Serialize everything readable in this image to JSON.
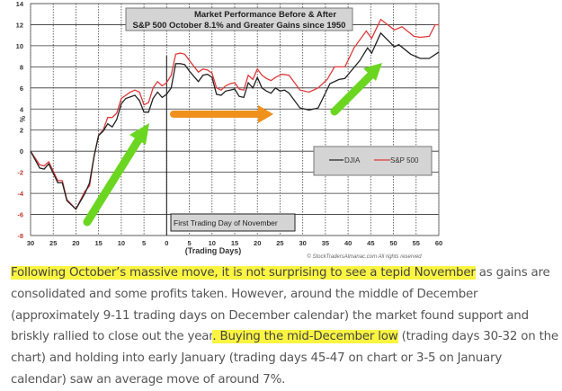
{
  "chart_data": {
    "type": "line",
    "title": [
      "Market Performance Before & After",
      "S&P 500 October 8.1% and Greater Gains since 1950"
    ],
    "xlabel": "(Trading Days)",
    "ylabel": "%",
    "xlim": [
      -30,
      60
    ],
    "ylim": [
      -8,
      14
    ],
    "x_ticks": [
      -30,
      -25,
      -20,
      -15,
      -10,
      -5,
      0,
      5,
      10,
      15,
      20,
      25,
      30,
      35,
      40,
      45,
      50,
      55,
      60
    ],
    "x_tick_labels": [
      "30",
      "25",
      "20",
      "15",
      "10",
      "5",
      "0",
      "5",
      "10",
      "15",
      "20",
      "25",
      "30",
      "35",
      "40",
      "45",
      "50",
      "55",
      "60"
    ],
    "y_ticks": [
      -8,
      -6,
      -4,
      -2,
      0,
      2,
      4,
      6,
      8,
      10,
      12,
      14
    ],
    "y_tick_labels": [
      "-8",
      "-6",
      "-4",
      "-2",
      "0",
      "2",
      "4",
      "6",
      "8",
      "10",
      "12",
      "14"
    ],
    "grid": true,
    "legend_position": "right-middle",
    "annotation": "First Trading Day of November",
    "copyright": "© StockTradersAlmanac.com All rights reserved",
    "series": [
      {
        "name": "DJIA",
        "color": "#222222",
        "x": [
          -30,
          -28,
          -27,
          -26,
          -24,
          -23,
          -22,
          -20,
          -18,
          -17,
          -16,
          -15,
          -14,
          -13,
          -12,
          -11,
          -10,
          -9,
          -7,
          -6,
          -5,
          -4,
          -3,
          -2,
          -1,
          0,
          1,
          2,
          3,
          4,
          5,
          7,
          8,
          9,
          10,
          11,
          12,
          13,
          14,
          15,
          16,
          17,
          18,
          19,
          20,
          21,
          22,
          23,
          24,
          25,
          26,
          27,
          29.4,
          31.4,
          33.4,
          36,
          38,
          39.3,
          42.6,
          44.3,
          45.2,
          47.2,
          50.2,
          51.2,
          53.8,
          55.9,
          57.9,
          60
        ],
        "y": [
          0,
          -1.6,
          -1.7,
          -1.2,
          -3.0,
          -3.0,
          -4.7,
          -5.5,
          -4.0,
          -3.0,
          -0.5,
          1.5,
          1.9,
          2.6,
          2.3,
          3.0,
          4.5,
          5.0,
          5.3,
          4.8,
          3.7,
          3.7,
          5.0,
          5.6,
          5.1,
          5.4,
          6.0,
          8.3,
          8.3,
          8.2,
          7.6,
          6.6,
          7.2,
          7.3,
          7.0,
          5.4,
          5.3,
          5.7,
          5.8,
          5.9,
          5.2,
          5.1,
          6.5,
          6.0,
          7.0,
          6.0,
          5.7,
          5.5,
          6.0,
          5.7,
          5.8,
          5.5,
          4.1,
          3.9,
          4.1,
          6.4,
          6.8,
          6.9,
          8.6,
          9.8,
          9.3,
          11.2,
          9.9,
          10.1,
          9.2,
          8.8,
          8.8,
          9.4
        ]
      },
      {
        "name": "S&P 500",
        "color": "#e0393a",
        "x": [
          -30,
          -28,
          -27,
          -26,
          -24,
          -23,
          -22,
          -20,
          -18,
          -17,
          -16,
          -15,
          -14,
          -13,
          -12,
          -11,
          -10,
          -8,
          -7,
          -6,
          -5,
          -4,
          -3,
          -2,
          -1,
          0,
          1,
          2,
          3,
          4,
          5,
          7,
          8,
          9,
          10,
          11,
          12,
          13,
          14,
          15,
          16,
          17,
          18,
          19,
          20,
          21,
          22,
          23,
          24,
          25.4,
          27,
          29.4,
          31.4,
          33.4,
          35.4,
          37,
          39.3,
          41.3,
          44,
          45.2,
          47.2,
          50.2,
          51.9,
          54.5,
          55.9,
          57.9,
          59.2,
          60
        ],
        "y": [
          0,
          -1.3,
          -1.4,
          -1.0,
          -2.8,
          -2.8,
          -4.6,
          -5.5,
          -3.8,
          -3.3,
          -0.5,
          1.5,
          2.0,
          3.2,
          3.2,
          3.6,
          5.0,
          5.6,
          5.8,
          5.6,
          4.4,
          4.6,
          6.0,
          6.6,
          6.2,
          6.5,
          7.2,
          9.2,
          9.3,
          9.2,
          8.6,
          7.5,
          7.8,
          7.7,
          7.4,
          6.0,
          5.8,
          6.2,
          6.4,
          6.5,
          5.9,
          5.8,
          7.2,
          6.8,
          7.8,
          7.2,
          6.9,
          6.7,
          7.0,
          7.3,
          7.2,
          5.8,
          5.6,
          6.0,
          6.8,
          8.0,
          8.0,
          9.8,
          11.4,
          10.7,
          12.5,
          11.5,
          11.8,
          10.9,
          10.8,
          10.9,
          12.0,
          12.0
        ]
      }
    ]
  },
  "text": {
    "h1": "Following October’s massive move, it is not surprising to see a tepid November",
    "t1": " as gains are consolidated and some profits taken. However, around the middle of December (approximately 9-11 trading days on December calendar) the market found support and briskly rallied to close out the year",
    "h2": ". Buying the mid-December low",
    "t2": " (trading days 30-32 on the chart) and holding into early January (trading days 45-47 on chart or 3-5 on January calendar) saw an average move of around 7%."
  }
}
